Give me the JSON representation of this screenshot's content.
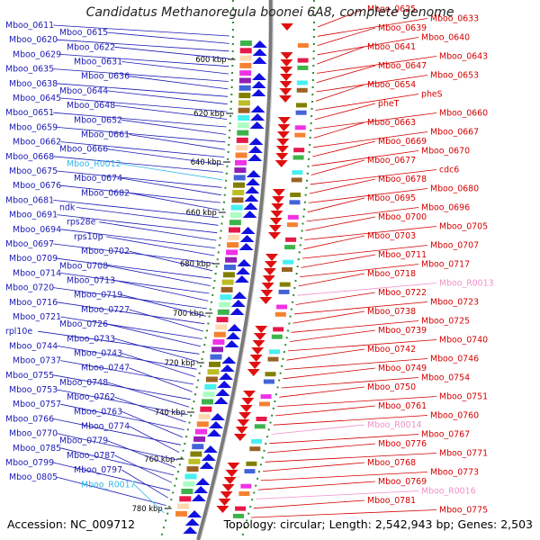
{
  "title": "Candidatus Methanoregula boonei 6A8, complete genome",
  "footer": {
    "accession": "Accession: NC_009712",
    "topology": "Topology: circular; Length: 2,542,943 bp; Genes: 2,503"
  },
  "colors": {
    "left_label": "#1a1ab4",
    "right_label": "#d40000",
    "rna_left": "#30b8e8",
    "rna_right": "#f090c8",
    "forward_gene": "#1010e0",
    "reverse_gene": "#e01010",
    "backbone": "#7a7a7a",
    "tick": "#2e8b2e"
  },
  "ticks": [
    "600 kbp",
    "620 kbp",
    "640 kbp",
    "660 kbp",
    "680 kbp",
    "700 kbp",
    "720 kbp",
    "740 kbp",
    "760 kbp",
    "780 kbp"
  ],
  "left_labels": [
    {
      "t": "Mboo_0611",
      "k": "g"
    },
    {
      "t": "Mboo_0615",
      "k": "g"
    },
    {
      "t": "Mboo_0620",
      "k": "g"
    },
    {
      "t": "Mboo_0622",
      "k": "g"
    },
    {
      "t": "Mboo_0629",
      "k": "g"
    },
    {
      "t": "Mboo_0631",
      "k": "g"
    },
    {
      "t": "Mboo_0635",
      "k": "g"
    },
    {
      "t": "Mboo_0636",
      "k": "g"
    },
    {
      "t": "Mboo_0638",
      "k": "g"
    },
    {
      "t": "Mboo_0644",
      "k": "g"
    },
    {
      "t": "Mboo_0645",
      "k": "g"
    },
    {
      "t": "Mboo_0648",
      "k": "g"
    },
    {
      "t": "Mboo_0651",
      "k": "g"
    },
    {
      "t": "Mboo_0652",
      "k": "g"
    },
    {
      "t": "Mboo_0659",
      "k": "g"
    },
    {
      "t": "Mboo_0661",
      "k": "g"
    },
    {
      "t": "Mboo_0662",
      "k": "g"
    },
    {
      "t": "Mboo_0666",
      "k": "g"
    },
    {
      "t": "Mboo_0668",
      "k": "g"
    },
    {
      "t": "Mboo_R0012",
      "k": "r"
    },
    {
      "t": "Mboo_0675",
      "k": "g"
    },
    {
      "t": "Mboo_0674",
      "k": "g"
    },
    {
      "t": "Mboo_0676",
      "k": "g"
    },
    {
      "t": "Mboo_0682",
      "k": "g"
    },
    {
      "t": "Mboo_0681",
      "k": "g"
    },
    {
      "t": "ndk",
      "k": "g"
    },
    {
      "t": "Mboo_0691",
      "k": "g"
    },
    {
      "t": "rps28e",
      "k": "g"
    },
    {
      "t": "Mboo_0694",
      "k": "g"
    },
    {
      "t": "rps10p",
      "k": "g"
    },
    {
      "t": "Mboo_0697",
      "k": "g"
    },
    {
      "t": "Mboo_0702",
      "k": "g"
    },
    {
      "t": "Mboo_0709",
      "k": "g"
    },
    {
      "t": "Mboo_0708",
      "k": "g"
    },
    {
      "t": "Mboo_0714",
      "k": "g"
    },
    {
      "t": "Mboo_0713",
      "k": "g"
    },
    {
      "t": "Mboo_0720",
      "k": "g"
    },
    {
      "t": "Mboo_0719",
      "k": "g"
    },
    {
      "t": "Mboo_0716",
      "k": "g"
    },
    {
      "t": "Mboo_0727",
      "k": "g"
    },
    {
      "t": "Mboo_0721",
      "k": "g"
    },
    {
      "t": "Mboo_0726",
      "k": "g"
    },
    {
      "t": "rpl10e",
      "k": "g"
    },
    {
      "t": "Mboo_0733",
      "k": "g"
    },
    {
      "t": "Mboo_0744",
      "k": "g"
    },
    {
      "t": "Mboo_0743",
      "k": "g"
    },
    {
      "t": "Mboo_0737",
      "k": "g"
    },
    {
      "t": "Mboo_0747",
      "k": "g"
    },
    {
      "t": "Mboo_0755",
      "k": "g"
    },
    {
      "t": "Mboo_0748",
      "k": "g"
    },
    {
      "t": "Mboo_0753",
      "k": "g"
    },
    {
      "t": "Mboo_0762",
      "k": "g"
    },
    {
      "t": "Mboo_0757",
      "k": "g"
    },
    {
      "t": "Mboo_0763",
      "k": "g"
    },
    {
      "t": "Mboo_0766",
      "k": "g"
    },
    {
      "t": "Mboo_0774",
      "k": "g"
    },
    {
      "t": "Mboo_0770",
      "k": "g"
    },
    {
      "t": "Mboo_0779",
      "k": "g"
    },
    {
      "t": "Mboo_0785",
      "k": "g"
    },
    {
      "t": "Mboo_0787",
      "k": "g"
    },
    {
      "t": "Mboo_0799",
      "k": "g"
    },
    {
      "t": "Mboo_0797",
      "k": "g"
    },
    {
      "t": "Mboo_0805",
      "k": "g"
    },
    {
      "t": "Mboo_R0017",
      "k": "r"
    }
  ],
  "right_labels": [
    {
      "t": "Mboo_0625",
      "k": "g"
    },
    {
      "t": "Mboo_0633",
      "k": "g"
    },
    {
      "t": "Mboo_0639",
      "k": "g"
    },
    {
      "t": "Mboo_0640",
      "k": "g"
    },
    {
      "t": "Mboo_0641",
      "k": "g"
    },
    {
      "t": "Mboo_0643",
      "k": "g"
    },
    {
      "t": "Mboo_0647",
      "k": "g"
    },
    {
      "t": "Mboo_0653",
      "k": "g"
    },
    {
      "t": "Mboo_0654",
      "k": "g"
    },
    {
      "t": "pheS",
      "k": "g"
    },
    {
      "t": "pheT",
      "k": "g"
    },
    {
      "t": "Mboo_0660",
      "k": "g"
    },
    {
      "t": "Mboo_0663",
      "k": "g"
    },
    {
      "t": "Mboo_0667",
      "k": "g"
    },
    {
      "t": "Mboo_0669",
      "k": "g"
    },
    {
      "t": "Mboo_0670",
      "k": "g"
    },
    {
      "t": "Mboo_0677",
      "k": "g"
    },
    {
      "t": "cdc6",
      "k": "g"
    },
    {
      "t": "Mboo_0678",
      "k": "g"
    },
    {
      "t": "Mboo_0680",
      "k": "g"
    },
    {
      "t": "Mboo_0695",
      "k": "g"
    },
    {
      "t": "Mboo_0696",
      "k": "g"
    },
    {
      "t": "Mboo_0700",
      "k": "g"
    },
    {
      "t": "Mboo_0705",
      "k": "g"
    },
    {
      "t": "Mboo_0703",
      "k": "g"
    },
    {
      "t": "Mboo_0707",
      "k": "g"
    },
    {
      "t": "Mboo_0711",
      "k": "g"
    },
    {
      "t": "Mboo_0717",
      "k": "g"
    },
    {
      "t": "Mboo_0718",
      "k": "g"
    },
    {
      "t": "Mboo_R0013",
      "k": "r"
    },
    {
      "t": "Mboo_0722",
      "k": "g"
    },
    {
      "t": "Mboo_0723",
      "k": "g"
    },
    {
      "t": "Mboo_0738",
      "k": "g"
    },
    {
      "t": "Mboo_0725",
      "k": "g"
    },
    {
      "t": "Mboo_0739",
      "k": "g"
    },
    {
      "t": "Mboo_0740",
      "k": "g"
    },
    {
      "t": "Mboo_0742",
      "k": "g"
    },
    {
      "t": "Mboo_0746",
      "k": "g"
    },
    {
      "t": "Mboo_0749",
      "k": "g"
    },
    {
      "t": "Mboo_0754",
      "k": "g"
    },
    {
      "t": "Mboo_0750",
      "k": "g"
    },
    {
      "t": "Mboo_0751",
      "k": "g"
    },
    {
      "t": "Mboo_0761",
      "k": "g"
    },
    {
      "t": "Mboo_0760",
      "k": "g"
    },
    {
      "t": "Mboo_R0014",
      "k": "r"
    },
    {
      "t": "Mboo_0767",
      "k": "g"
    },
    {
      "t": "Mboo_0776",
      "k": "g"
    },
    {
      "t": "Mboo_0771",
      "k": "g"
    },
    {
      "t": "Mboo_0768",
      "k": "g"
    },
    {
      "t": "Mboo_0773",
      "k": "g"
    },
    {
      "t": "Mboo_0769",
      "k": "g"
    },
    {
      "t": "Mboo_R0016",
      "k": "r"
    },
    {
      "t": "Mboo_0781",
      "k": "g"
    },
    {
      "t": "Mboo_0775",
      "k": "g"
    }
  ]
}
